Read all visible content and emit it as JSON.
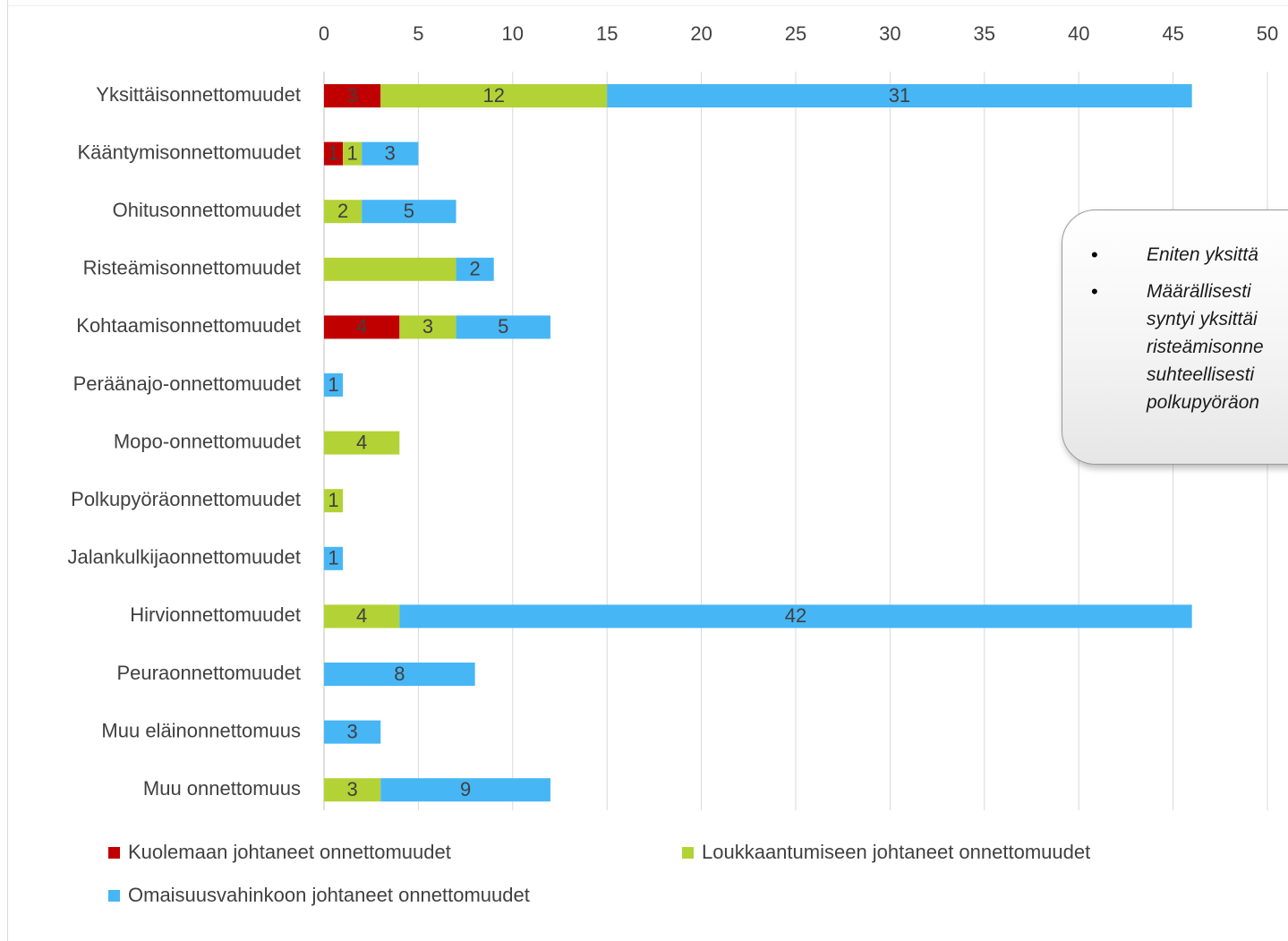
{
  "chart_data": {
    "type": "bar",
    "orientation": "horizontal",
    "stacked": true,
    "categories": [
      "Yksittäisonnettomuudet",
      "Kääntymisonnettomuudet",
      "Ohitusonnettomuudet",
      "Risteämisonnettomuudet",
      "Kohtaamisonnettomuudet",
      "Peräänajo-onnettomuudet",
      "Mopo-onnettomuudet",
      "Polkupyöräonnettomuudet",
      "Jalankulkijaonnettomuudet",
      "Hirvionnettomuudet",
      "Peuraonnettomuudet",
      "Muu eläinonnettomuus",
      "Muu onnettomuus"
    ],
    "series": [
      {
        "name": "Kuolemaan johtaneet onnettomuudet",
        "color": "#c00000",
        "values": [
          3,
          1,
          0,
          0,
          4,
          0,
          0,
          0,
          0,
          0,
          0,
          0,
          0
        ]
      },
      {
        "name": "Loukkaantumiseen johtaneet onnettomuudet",
        "color": "#b3d235",
        "values": [
          12,
          1,
          2,
          7,
          3,
          0,
          4,
          1,
          0,
          4,
          0,
          0,
          3
        ]
      },
      {
        "name": "Omaisuusvahinkoon johtaneet onnettomuudet",
        "color": "#47b6f5",
        "values": [
          31,
          3,
          5,
          2,
          5,
          1,
          0,
          0,
          1,
          42,
          8,
          3,
          9
        ]
      }
    ],
    "data_labels": [
      [
        "3",
        "1",
        "",
        "",
        "4",
        "",
        "",
        "",
        "",
        "",
        "",
        "",
        ""
      ],
      [
        "12",
        "1",
        "2",
        "",
        "3",
        "",
        "4",
        "1",
        "",
        "4",
        "",
        "",
        "3"
      ],
      [
        "31",
        "3",
        "5",
        "2",
        "5",
        "1",
        "",
        "",
        "1",
        "42",
        "8",
        "3",
        "9"
      ]
    ],
    "xticks": [
      "0",
      "5",
      "10",
      "15",
      "20",
      "25",
      "30",
      "35",
      "40",
      "45",
      "50"
    ],
    "xlim": [
      0,
      50
    ],
    "xaxis_position": "top",
    "grid": true,
    "legend": "bottom"
  },
  "callout": {
    "bullet": "•",
    "items": [
      [
        "Eniten yksittä"
      ],
      [
        "Määrällisesti",
        "syntyi yksittäi",
        "risteämisonne",
        "suhteellisesti",
        "polkupyöräon"
      ]
    ]
  }
}
